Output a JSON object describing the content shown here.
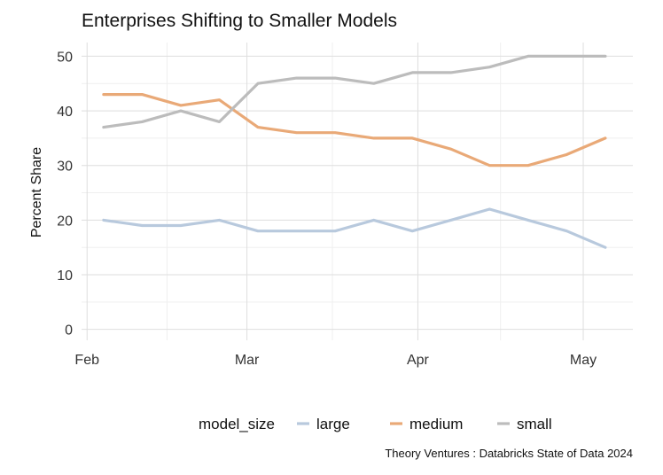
{
  "chart_data": {
    "type": "line",
    "title": "Enterprises Shifting to Smaller Models",
    "xlabel": "",
    "ylabel": "Percent Share",
    "x": [
      "2024-02-04",
      "2024-02-11",
      "2024-02-18",
      "2024-02-25",
      "2024-03-03",
      "2024-03-10",
      "2024-03-17",
      "2024-03-24",
      "2024-03-31",
      "2024-04-07",
      "2024-04-14",
      "2024-04-21",
      "2024-04-28",
      "2024-05-05"
    ],
    "x_ticks": [
      {
        "date": "2024-02-01",
        "label": "Feb"
      },
      {
        "date": "2024-03-01",
        "label": "Mar"
      },
      {
        "date": "2024-04-01",
        "label": "Apr"
      },
      {
        "date": "2024-05-01",
        "label": "May"
      }
    ],
    "xlim": [
      "2024-01-31",
      "2024-05-10"
    ],
    "y_ticks": [
      0,
      10,
      20,
      30,
      40,
      50
    ],
    "ylim": [
      -2,
      52.5
    ],
    "grid": true,
    "legend": {
      "placement": "bottom",
      "title": "model_size"
    },
    "series": [
      {
        "name": "large",
        "color": "#b8c9dd",
        "values": [
          20,
          19,
          19,
          20,
          18,
          18,
          18,
          20,
          18,
          20,
          22,
          20,
          18,
          15
        ]
      },
      {
        "name": "medium",
        "color": "#e9a977",
        "values": [
          43,
          43,
          41,
          42,
          37,
          36,
          36,
          35,
          35,
          33,
          30,
          30,
          32,
          35
        ]
      },
      {
        "name": "small",
        "color": "#bcbcbc",
        "values": [
          37,
          38,
          40,
          38,
          45,
          46,
          46,
          45,
          47,
          47,
          48,
          50,
          50,
          50
        ]
      }
    ],
    "caption": "Theory Ventures : Databricks State of Data 2024"
  }
}
